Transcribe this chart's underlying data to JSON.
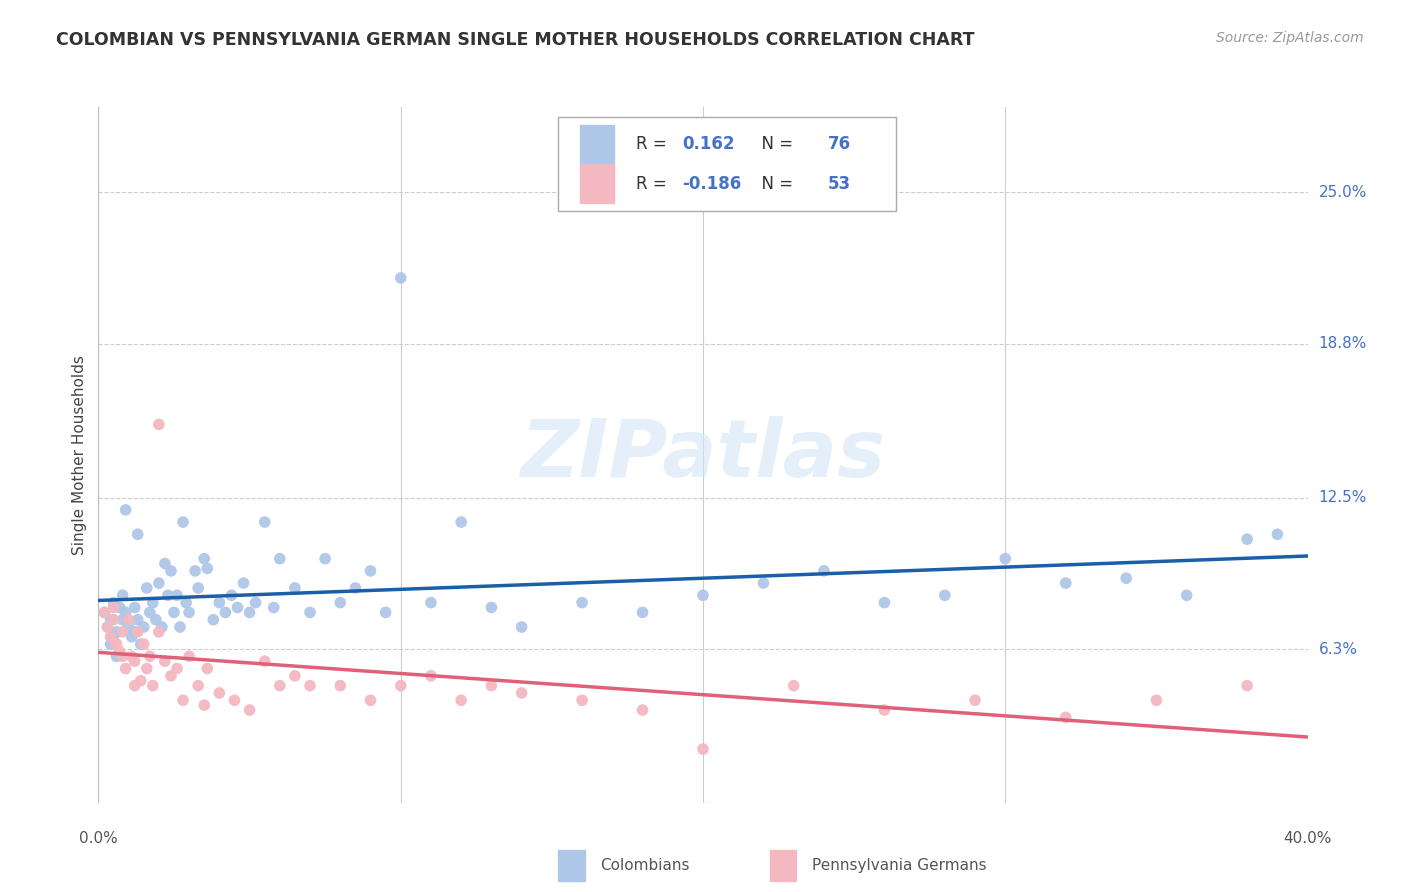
{
  "title": "COLOMBIAN VS PENNSYLVANIA GERMAN SINGLE MOTHER HOUSEHOLDS CORRELATION CHART",
  "source": "Source: ZipAtlas.com",
  "ylabel": "Single Mother Households",
  "ytick_labels": [
    "25.0%",
    "18.8%",
    "12.5%",
    "6.3%"
  ],
  "ytick_values": [
    0.25,
    0.188,
    0.125,
    0.063
  ],
  "xlim": [
    0.0,
    0.4
  ],
  "ylim": [
    0.0,
    0.285
  ],
  "xtick_positions": [
    0.0,
    0.1,
    0.2,
    0.3,
    0.4
  ],
  "xtick_labels": [
    "0.0%",
    "",
    "",
    "",
    "40.0%"
  ],
  "legend_bottom": [
    "Colombians",
    "Pennsylvania Germans"
  ],
  "colombian_color": "#aec6e8",
  "pg_color": "#f4b8c1",
  "trendline_colombian_color": "#1a5fa8",
  "trendline_pg_color": "#e0607a",
  "watermark": "ZIPatlas",
  "background_color": "#ffffff",
  "grid_color": "#cccccc",
  "colombian_R": 0.162,
  "colombian_N": 76,
  "pg_R": -0.186,
  "pg_N": 53,
  "colombian_x": [
    0.002,
    0.003,
    0.004,
    0.005,
    0.005,
    0.006,
    0.007,
    0.008,
    0.008,
    0.009,
    0.01,
    0.011,
    0.012,
    0.012,
    0.013,
    0.014,
    0.015,
    0.016,
    0.017,
    0.018,
    0.019,
    0.02,
    0.021,
    0.022,
    0.023,
    0.024,
    0.025,
    0.026,
    0.027,
    0.028,
    0.029,
    0.03,
    0.032,
    0.033,
    0.035,
    0.036,
    0.038,
    0.04,
    0.042,
    0.044,
    0.046,
    0.048,
    0.05,
    0.052,
    0.055,
    0.058,
    0.06,
    0.065,
    0.07,
    0.075,
    0.08,
    0.085,
    0.09,
    0.095,
    0.1,
    0.11,
    0.12,
    0.13,
    0.14,
    0.16,
    0.18,
    0.2,
    0.22,
    0.24,
    0.26,
    0.28,
    0.3,
    0.32,
    0.34,
    0.36,
    0.38,
    0.39,
    0.004,
    0.006,
    0.009,
    0.013
  ],
  "colombian_y": [
    0.078,
    0.072,
    0.075,
    0.068,
    0.082,
    0.07,
    0.08,
    0.075,
    0.085,
    0.078,
    0.072,
    0.068,
    0.07,
    0.08,
    0.075,
    0.065,
    0.072,
    0.088,
    0.078,
    0.082,
    0.075,
    0.09,
    0.072,
    0.098,
    0.085,
    0.095,
    0.078,
    0.085,
    0.072,
    0.115,
    0.082,
    0.078,
    0.095,
    0.088,
    0.1,
    0.096,
    0.075,
    0.082,
    0.078,
    0.085,
    0.08,
    0.09,
    0.078,
    0.082,
    0.115,
    0.08,
    0.1,
    0.088,
    0.078,
    0.1,
    0.082,
    0.088,
    0.095,
    0.078,
    0.215,
    0.082,
    0.115,
    0.08,
    0.072,
    0.082,
    0.078,
    0.085,
    0.09,
    0.095,
    0.082,
    0.085,
    0.1,
    0.09,
    0.092,
    0.085,
    0.108,
    0.11,
    0.065,
    0.06,
    0.12,
    0.11
  ],
  "pg_x": [
    0.002,
    0.003,
    0.004,
    0.005,
    0.006,
    0.007,
    0.008,
    0.009,
    0.01,
    0.011,
    0.012,
    0.013,
    0.014,
    0.015,
    0.016,
    0.017,
    0.018,
    0.02,
    0.022,
    0.024,
    0.026,
    0.028,
    0.03,
    0.033,
    0.036,
    0.04,
    0.045,
    0.05,
    0.055,
    0.06,
    0.065,
    0.07,
    0.08,
    0.09,
    0.1,
    0.11,
    0.12,
    0.13,
    0.14,
    0.16,
    0.18,
    0.2,
    0.23,
    0.26,
    0.29,
    0.32,
    0.35,
    0.38,
    0.005,
    0.008,
    0.012,
    0.02,
    0.035
  ],
  "pg_y": [
    0.078,
    0.072,
    0.068,
    0.08,
    0.065,
    0.062,
    0.07,
    0.055,
    0.075,
    0.06,
    0.058,
    0.07,
    0.05,
    0.065,
    0.055,
    0.06,
    0.048,
    0.07,
    0.058,
    0.052,
    0.055,
    0.042,
    0.06,
    0.048,
    0.055,
    0.045,
    0.042,
    0.038,
    0.058,
    0.048,
    0.052,
    0.048,
    0.048,
    0.042,
    0.048,
    0.052,
    0.042,
    0.048,
    0.045,
    0.042,
    0.038,
    0.022,
    0.048,
    0.038,
    0.042,
    0.035,
    0.042,
    0.048,
    0.075,
    0.06,
    0.048,
    0.155,
    0.04
  ]
}
